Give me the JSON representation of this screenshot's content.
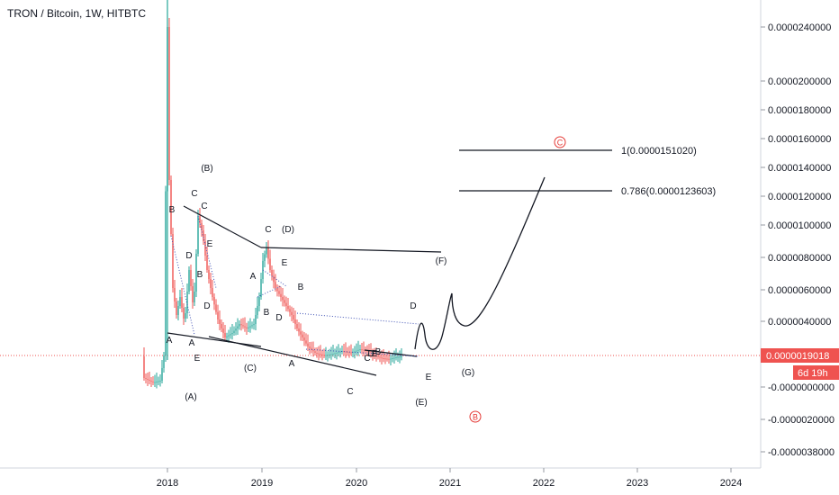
{
  "header": {
    "title": "TRON / Bitcoin, 1W, HITBTC"
  },
  "colors": {
    "up": "#26a69a",
    "down": "#ef5350",
    "price": "#ef5350",
    "dots": "#3f51b5",
    "lines": "#131722",
    "circle": "#e53935"
  },
  "chart_data": {
    "type": "candlestick",
    "x_ticks": [
      "2018",
      "2019",
      "2020",
      "2021",
      "2022",
      "2023",
      "2024"
    ],
    "y_ticks": [
      "0.0000240000",
      "0.0000200000",
      "0.0000180000",
      "0.0000160000",
      "0.0000140000",
      "0.0000120000",
      "0.0000100000",
      "0.0000080000",
      "0.0000060000",
      "0.0000040000",
      "-0.0000000000",
      "-0.0000020000",
      "-0.0000038000"
    ],
    "price_label": "0.0000019018",
    "countdown": "6d 19h",
    "fib_levels": [
      {
        "label": "1(0.0000151020)"
      },
      {
        "label": "0.786(0.0000123603)"
      }
    ],
    "circle_labels": [
      "C",
      "B"
    ],
    "wave_labels": [
      "(A)",
      "(B)",
      "(C)",
      "(D)",
      "(E)",
      "(F)",
      "(G)",
      "A",
      "B",
      "C",
      "D",
      "E",
      "A",
      "B",
      "C",
      "D",
      "E",
      "A",
      "B",
      "C",
      "D",
      "E",
      "A",
      "B",
      "C",
      "D",
      "E",
      "B",
      "C",
      "D",
      "E"
    ]
  }
}
